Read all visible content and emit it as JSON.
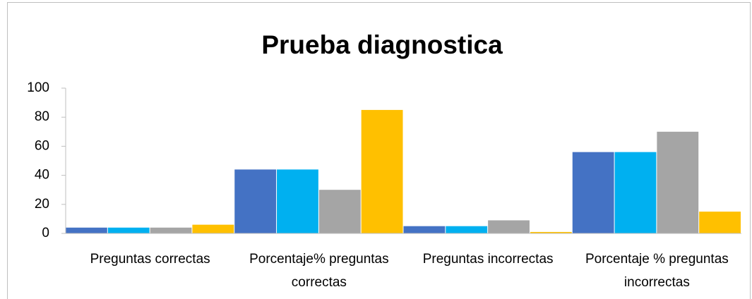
{
  "chart_data": {
    "type": "bar",
    "title": "Prueba diagnostica",
    "categories": [
      "Preguntas correctas",
      "Porcentaje% preguntas correctas",
      "Preguntas incorrectas",
      "Porcentaje % preguntas incorrectas"
    ],
    "series": [
      {
        "color": "#4472c4",
        "values": [
          4,
          44,
          5,
          56
        ]
      },
      {
        "color": "#00b0f0",
        "values": [
          4,
          44,
          5,
          56
        ]
      },
      {
        "color": "#a5a5a5",
        "values": [
          4,
          30,
          9,
          70
        ]
      },
      {
        "color": "#ffc000",
        "values": [
          6,
          85,
          1,
          15
        ]
      }
    ],
    "ylim": [
      0,
      100
    ],
    "yticks": [
      0,
      20,
      40,
      60,
      80,
      100
    ],
    "grid": false
  }
}
